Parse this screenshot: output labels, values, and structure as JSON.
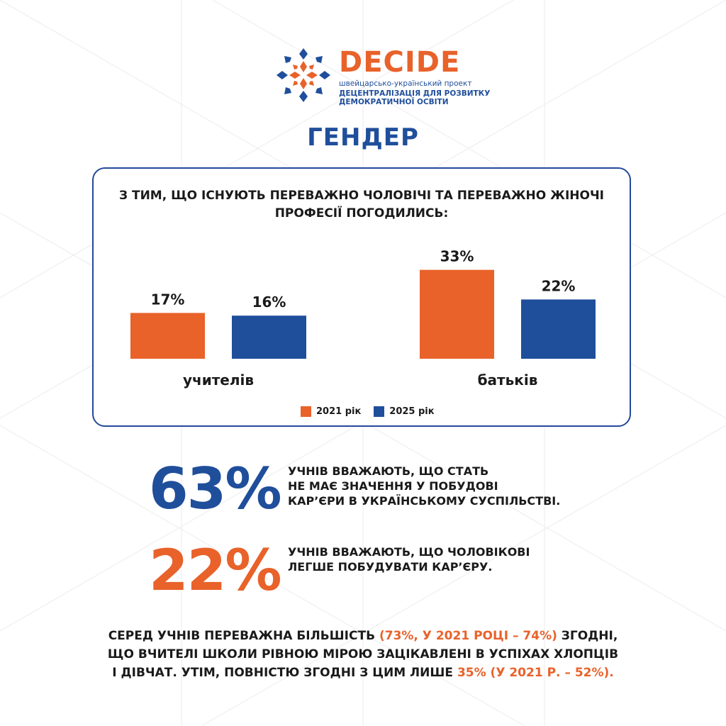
{
  "logo": {
    "word": "DECIDE",
    "subtitle": "швейцарсько-український проект",
    "subtitle_bold_1": "ДЕЦЕНТРАЛІЗАЦІЯ ДЛЯ РОЗВИТКУ",
    "subtitle_bold_2": "ДЕМОКРАТИЧНОЇ ОСВІТИ"
  },
  "page_title": "ГЕНДЕР",
  "colors": {
    "orange": "#e8622a",
    "blue": "#1f4e9b",
    "border": "#24499a"
  },
  "chart_data": {
    "type": "bar",
    "title": "З ТИМ, ЩО ІСНУЮТЬ ПЕРЕВАЖНО ЧОЛОВІЧІ ТА ПЕРЕВАЖНО ЖІНОЧІ ПРОФЕСІЇ ПОГОДИЛИСЬ:",
    "categories": [
      "учителів",
      "батьків"
    ],
    "series": [
      {
        "name": "2021 рік",
        "color": "#e8622a",
        "values": [
          17,
          33
        ],
        "labels": [
          "17%",
          "33%"
        ]
      },
      {
        "name": "2025 рік",
        "color": "#1f4e9b",
        "values": [
          16,
          22
        ],
        "labels": [
          "16%",
          "22%"
        ]
      }
    ],
    "ylim": [
      0,
      40
    ],
    "legend": "bottom",
    "grid": false
  },
  "stats": [
    {
      "value": "63%",
      "text_1": "УЧНІВ ВВАЖАЮТЬ, ЩО СТАТЬ",
      "text_2": "НЕ МАЄ ЗНАЧЕННЯ У ПОБУДОВІ",
      "text_3": "КАР’ЄРИ В УКРАЇНСЬКОМУ СУСПІЛЬСТВІ."
    },
    {
      "value": "22%",
      "text_1": "УЧНІВ ВВАЖАЮТЬ, ЩО ЧОЛОВІКОВІ",
      "text_2": "ЛЕГШЕ ПОБУДУВАТИ КАР’ЄРУ."
    }
  ],
  "footer": {
    "line1_a": "СЕРЕД УЧНІВ ПЕРЕВАЖНА БІЛЬШІСТЬ ",
    "line1_hl": "(73%, У 2021 РОЦІ – 74%)",
    "line1_b": " ЗГОДНІ,",
    "line2": "ЩО ВЧИТЕЛІ ШКОЛИ РІВНОЮ МІРОЮ ЗАЦІКАВЛЕНІ В УСПІХАХ ХЛОПЦІВ",
    "line3_a": "І ДІВЧАТ. УТІМ, ПОВНІСТЮ ЗГОДНІ З ЦИМ ЛИШЕ  ",
    "line3_hl": "35% (У 2021 Р. – 52%)."
  }
}
